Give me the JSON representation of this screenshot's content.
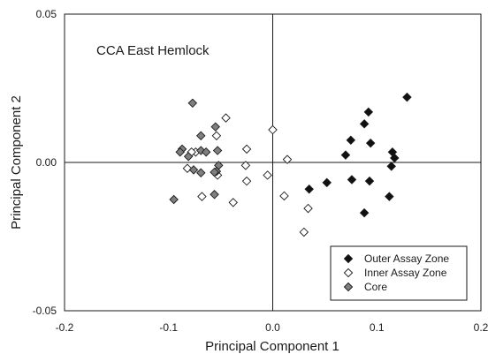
{
  "chart_data": {
    "type": "scatter",
    "title": "CCA East Hemlock",
    "xlabel": "Principal Component 1",
    "ylabel": "Principal Component 2",
    "xlim": [
      -0.2,
      0.2
    ],
    "ylim": [
      -0.05,
      0.05
    ],
    "x_ticks": [
      "-0.2",
      "-0.1",
      "0.0",
      "0.1",
      "0.2"
    ],
    "y_ticks": [
      "-0.05",
      "0.00",
      "0.05"
    ],
    "legend_position": "bottom-right",
    "grid": false,
    "series": [
      {
        "name": "Outer Assay Zone",
        "marker": "diamond-filled",
        "color": "#111111",
        "points": [
          [
            0.129,
            0.022
          ],
          [
            0.092,
            0.017
          ],
          [
            0.088,
            0.013
          ],
          [
            0.115,
            0.0035
          ],
          [
            0.117,
            0.0015
          ],
          [
            0.075,
            0.0075
          ],
          [
            0.094,
            0.0065
          ],
          [
            0.07,
            0.0025
          ],
          [
            0.114,
            -0.0013
          ],
          [
            0.076,
            -0.0058
          ],
          [
            0.093,
            -0.0063
          ],
          [
            0.052,
            -0.0068
          ],
          [
            0.035,
            -0.009
          ],
          [
            0.112,
            -0.0115
          ],
          [
            0.088,
            -0.017
          ]
        ]
      },
      {
        "name": "Inner Assay Zone",
        "marker": "diamond-open",
        "color": "#ffffff",
        "points": [
          [
            -0.045,
            0.015
          ],
          [
            0.0,
            0.011
          ],
          [
            -0.054,
            0.009
          ],
          [
            -0.025,
            0.0045
          ],
          [
            -0.074,
            0.0035
          ],
          [
            -0.078,
            0.0035
          ],
          [
            0.014,
            0.001
          ],
          [
            -0.026,
            -0.001
          ],
          [
            -0.082,
            -0.002
          ],
          [
            -0.005,
            -0.0043
          ],
          [
            -0.053,
            -0.0043
          ],
          [
            -0.025,
            -0.0063
          ],
          [
            0.011,
            -0.0113
          ],
          [
            -0.068,
            -0.0115
          ],
          [
            -0.038,
            -0.0135
          ],
          [
            0.034,
            -0.0155
          ],
          [
            0.03,
            -0.0235
          ]
        ]
      },
      {
        "name": "Core",
        "marker": "diamond-filled",
        "color": "#7f7f7f",
        "points": [
          [
            -0.077,
            0.02
          ],
          [
            -0.055,
            0.012
          ],
          [
            -0.069,
            0.009
          ],
          [
            -0.087,
            0.0045
          ],
          [
            -0.089,
            0.0035
          ],
          [
            -0.069,
            0.004
          ],
          [
            -0.064,
            0.0035
          ],
          [
            -0.053,
            0.004
          ],
          [
            -0.081,
            0.002
          ],
          [
            -0.052,
            -0.001
          ],
          [
            -0.054,
            -0.003
          ],
          [
            -0.076,
            -0.0025
          ],
          [
            -0.069,
            -0.0035
          ],
          [
            -0.056,
            -0.0033
          ],
          [
            -0.056,
            -0.0108
          ],
          [
            -0.095,
            -0.0125
          ]
        ]
      }
    ]
  }
}
